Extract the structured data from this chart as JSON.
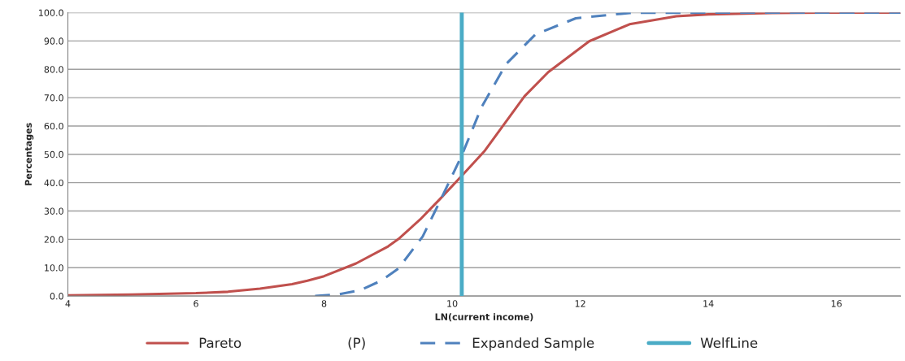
{
  "chart_data": {
    "type": "line",
    "xlabel": "LN(current income)",
    "ylabel": "Percentages",
    "xlim": [
      4,
      17
    ],
    "xticks": [
      4,
      6,
      8,
      10,
      12,
      14,
      16
    ],
    "ylim": [
      0,
      100
    ],
    "yticks": [
      {
        "value": 0,
        "label": "0.0"
      },
      {
        "value": 10,
        "label": "10.0"
      },
      {
        "value": 20,
        "label": "20.0"
      },
      {
        "value": 30,
        "label": "30.0"
      },
      {
        "value": 40,
        "label": "40.0"
      },
      {
        "value": 50,
        "label": "50.0"
      },
      {
        "value": 60,
        "label": "60.0"
      },
      {
        "value": 70,
        "label": "70.0"
      },
      {
        "value": 80,
        "label": "80.0"
      },
      {
        "value": 90,
        "label": "90.0"
      },
      {
        "value": 100,
        "label": "100.0"
      }
    ],
    "grid": "y",
    "legend": "bottom",
    "series": [
      {
        "name": "Pareto",
        "color": "#c0504d",
        "line_style": "solid",
        "x": [
          4,
          5,
          6,
          6.5,
          7,
          7.5,
          7.74,
          8,
          8.5,
          9,
          9.16,
          9.5,
          9.8,
          10.15,
          10.5,
          11.13,
          11.5,
          12.14,
          12.77,
          13.5,
          14,
          15,
          16,
          17
        ],
        "values": [
          0.2,
          0.5,
          1.0,
          1.5,
          2.6,
          4.2,
          5.4,
          7,
          11.5,
          17.5,
          20.1,
          27,
          34,
          42.4,
          51,
          70.5,
          79,
          89.9,
          95.9,
          98.7,
          99.4,
          99.9,
          100,
          100
        ]
      },
      {
        "name": "Expanded Sample",
        "color": "#4f81bd",
        "line_style": "dashed",
        "x": [
          7.86,
          8.2,
          8.57,
          8.9,
          9.16,
          9.54,
          9.83,
          10.15,
          10.46,
          10.84,
          11.3,
          11.93,
          12.77,
          14,
          17
        ],
        "values": [
          0,
          0.5,
          2.1,
          5.5,
          9.7,
          21,
          34.4,
          49.6,
          66.7,
          81.8,
          92.3,
          98,
          99.9,
          100,
          100
        ]
      }
    ],
    "ref_lines": [
      {
        "axis": "x",
        "value": 10.15,
        "label": "WelfLine",
        "color": "#4bacc6",
        "line_style": "solid"
      }
    ],
    "annotations": [
      "(P)"
    ]
  }
}
